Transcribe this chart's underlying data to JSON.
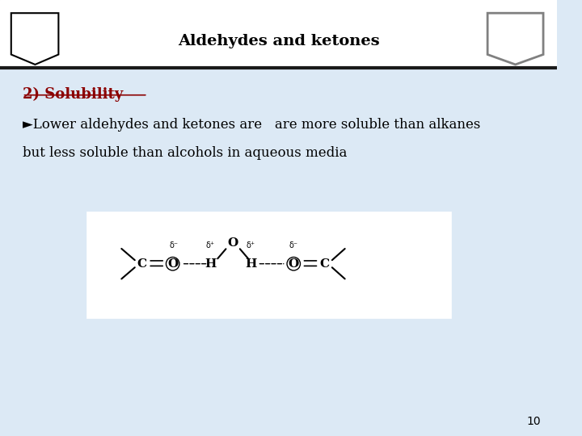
{
  "title": "Aldehydes and ketones",
  "title_fontsize": 14,
  "slide_bg": "#dce9f5",
  "header_line_color": "#1a1a1a",
  "heading_text": "2) Solubility",
  "heading_color": "#8b0000",
  "heading_fontsize": 13,
  "bullet_text1": "►Lower aldehydes and ketones are   are more soluble than alkanes",
  "bullet_text2": "but less soluble than alcohols in aqueous media",
  "bullet_fontsize": 12,
  "bullet_color": "#000000",
  "page_number": "10"
}
